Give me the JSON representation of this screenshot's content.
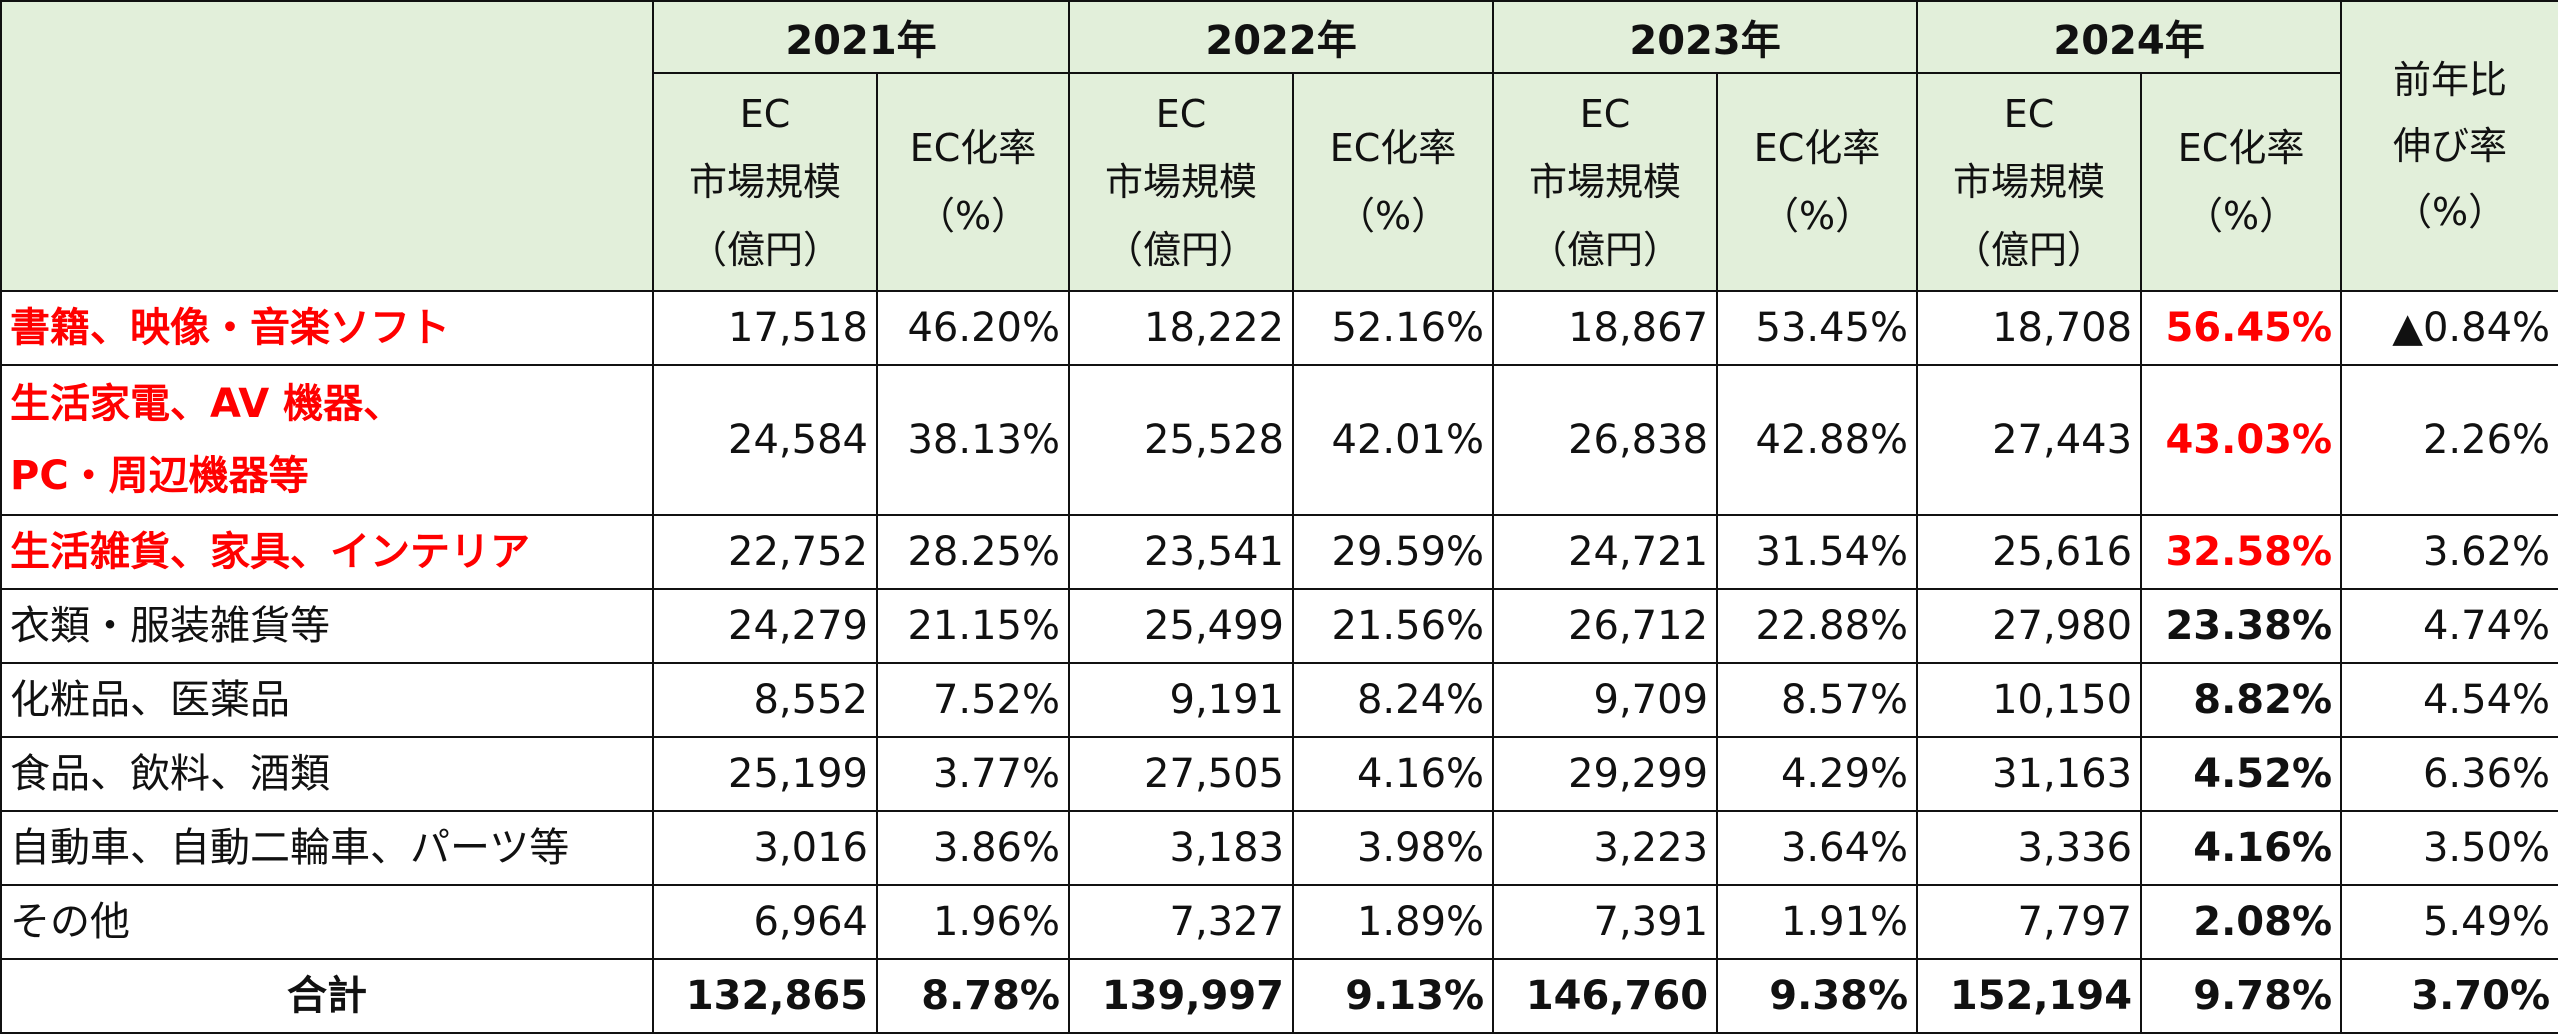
{
  "header": {
    "years": [
      "2021年",
      "2022年",
      "2023年",
      "2024年"
    ],
    "market_label": "EC\n市場規模\n（億円）",
    "rate_label": "EC化率\n（%）",
    "growth_label": "前年比\n伸び率\n（%）"
  },
  "rows": [
    {
      "category": "書籍、映像・音楽ソフト",
      "values": [
        "17,518",
        "46.20%",
        "18,222",
        "52.16%",
        "18,867",
        "53.45%",
        "18,708",
        "56.45%",
        "▲0.84%"
      ]
    },
    {
      "category": "生活家電、AV 機器、\nPC・周辺機器等",
      "values": [
        "24,584",
        "38.13%",
        "25,528",
        "42.01%",
        "26,838",
        "42.88%",
        "27,443",
        "43.03%",
        "2.26%"
      ]
    },
    {
      "category": "生活雑貨、家具、インテリア",
      "values": [
        "22,752",
        "28.25%",
        "23,541",
        "29.59%",
        "24,721",
        "31.54%",
        "25,616",
        "32.58%",
        "3.62%"
      ]
    },
    {
      "category": "衣類・服装雑貨等",
      "values": [
        "24,279",
        "21.15%",
        "25,499",
        "21.56%",
        "26,712",
        "22.88%",
        "27,980",
        "23.38%",
        "4.74%"
      ]
    },
    {
      "category": "化粧品、医薬品",
      "values": [
        "8,552",
        "7.52%",
        "9,191",
        "8.24%",
        "9,709",
        "8.57%",
        "10,150",
        "8.82%",
        "4.54%"
      ]
    },
    {
      "category": "食品、飲料、酒類",
      "values": [
        "25,199",
        "3.77%",
        "27,505",
        "4.16%",
        "29,299",
        "4.29%",
        "31,163",
        "4.52%",
        "6.36%"
      ]
    },
    {
      "category": "自動車、自動二輪車、パーツ等",
      "values": [
        "3,016",
        "3.86%",
        "3,183",
        "3.98%",
        "3,223",
        "3.64%",
        "3,336",
        "4.16%",
        "3.50%"
      ]
    },
    {
      "category": "その他",
      "values": [
        "6,964",
        "1.96%",
        "7,327",
        "1.89%",
        "7,391",
        "1.91%",
        "7,797",
        "2.08%",
        "5.49%"
      ]
    }
  ],
  "total": {
    "category": "合計",
    "values": [
      "132,865",
      "8.78%",
      "139,997",
      "9.13%",
      "146,760",
      "9.38%",
      "152,194",
      "9.78%",
      "3.70%"
    ]
  },
  "colors": {
    "header_bg": "#e2efda",
    "highlight": "#ff0000",
    "border": "#111111"
  }
}
